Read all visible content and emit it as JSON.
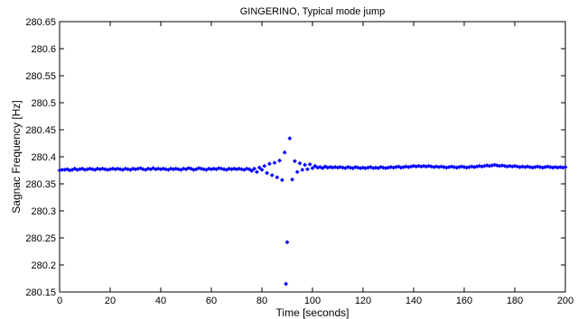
{
  "chart_data": {
    "type": "scatter",
    "title": "GINGERINO, Typical mode jump",
    "xlabel": "Time [seconds]",
    "ylabel": "Sagnac Frequency [Hz]",
    "xlim": [
      0,
      200
    ],
    "ylim": [
      280.15,
      280.65
    ],
    "x_ticks": [
      0,
      20,
      40,
      60,
      80,
      100,
      120,
      140,
      160,
      180,
      200
    ],
    "x_tick_labels": [
      "0",
      "20",
      "40",
      "60",
      "80",
      "100",
      "120",
      "140",
      "160",
      "180",
      "200"
    ],
    "y_ticks": [
      280.15,
      280.2,
      280.25,
      280.3,
      280.35,
      280.4,
      280.45,
      280.5,
      280.55,
      280.6,
      280.65
    ],
    "y_tick_labels": [
      "280.15",
      "280.2",
      "280.25",
      "280.3",
      "280.35",
      "280.4",
      "280.45",
      "280.5",
      "280.55",
      "280.6",
      "280.65"
    ],
    "grid": false,
    "legend": "none",
    "marker": "diamond",
    "series": [
      {
        "color": "#0000ff",
        "points": [
          [
            0,
            280.375
          ],
          [
            1,
            280.376
          ],
          [
            2,
            280.376
          ],
          [
            3,
            280.377
          ],
          [
            4,
            280.375
          ],
          [
            5,
            280.376
          ],
          [
            6,
            280.378
          ],
          [
            7,
            280.376
          ],
          [
            8,
            280.377
          ],
          [
            9,
            280.378
          ],
          [
            10,
            280.376
          ],
          [
            11,
            280.377
          ],
          [
            12,
            280.378
          ],
          [
            13,
            280.377
          ],
          [
            14,
            280.376
          ],
          [
            15,
            280.378
          ],
          [
            16,
            280.377
          ],
          [
            17,
            280.378
          ],
          [
            18,
            280.377
          ],
          [
            19,
            280.376
          ],
          [
            20,
            280.377
          ],
          [
            21,
            280.378
          ],
          [
            22,
            280.377
          ],
          [
            23,
            280.378
          ],
          [
            24,
            280.377
          ],
          [
            25,
            280.376
          ],
          [
            26,
            280.378
          ],
          [
            27,
            280.377
          ],
          [
            28,
            280.376
          ],
          [
            29,
            280.378
          ],
          [
            30,
            280.377
          ],
          [
            31,
            280.378
          ],
          [
            32,
            280.379
          ],
          [
            33,
            280.377
          ],
          [
            34,
            280.376
          ],
          [
            35,
            280.378
          ],
          [
            36,
            280.377
          ],
          [
            37,
            280.379
          ],
          [
            38,
            280.377
          ],
          [
            39,
            280.378
          ],
          [
            40,
            280.377
          ],
          [
            41,
            280.378
          ],
          [
            42,
            280.377
          ],
          [
            43,
            280.376
          ],
          [
            44,
            280.378
          ],
          [
            45,
            280.377
          ],
          [
            46,
            280.378
          ],
          [
            47,
            280.377
          ],
          [
            48,
            280.376
          ],
          [
            49,
            280.378
          ],
          [
            50,
            280.377
          ],
          [
            51,
            280.379
          ],
          [
            52,
            280.378
          ],
          [
            53,
            280.376
          ],
          [
            54,
            280.377
          ],
          [
            55,
            280.379
          ],
          [
            56,
            280.378
          ],
          [
            57,
            280.377
          ],
          [
            58,
            280.376
          ],
          [
            59,
            280.378
          ],
          [
            60,
            280.377
          ],
          [
            61,
            280.378
          ],
          [
            62,
            280.377
          ],
          [
            63,
            280.379
          ],
          [
            64,
            280.378
          ],
          [
            65,
            280.377
          ],
          [
            66,
            280.376
          ],
          [
            67,
            280.378
          ],
          [
            68,
            280.377
          ],
          [
            69,
            280.378
          ],
          [
            70,
            280.377
          ],
          [
            71,
            280.378
          ],
          [
            72,
            280.377
          ],
          [
            73,
            280.376
          ],
          [
            74,
            280.378
          ],
          [
            75,
            280.377
          ],
          [
            76,
            280.374
          ],
          [
            77,
            280.378
          ],
          [
            78,
            280.372
          ],
          [
            79,
            280.38
          ],
          [
            80,
            280.376
          ],
          [
            81,
            280.383
          ],
          [
            82,
            280.37
          ],
          [
            83,
            280.387
          ],
          [
            84,
            280.366
          ],
          [
            85,
            280.389
          ],
          [
            86,
            280.362
          ],
          [
            87,
            280.393
          ],
          [
            88,
            280.357
          ],
          [
            89,
            280.408
          ],
          [
            89.5,
            280.165
          ],
          [
            90,
            280.242
          ],
          [
            91,
            280.434
          ],
          [
            92,
            280.358
          ],
          [
            93,
            280.392
          ],
          [
            94,
            280.372
          ],
          [
            95,
            280.388
          ],
          [
            96,
            280.376
          ],
          [
            97,
            280.385
          ],
          [
            98,
            280.377
          ],
          [
            99,
            280.386
          ],
          [
            100,
            280.379
          ],
          [
            101,
            280.383
          ],
          [
            102,
            280.38
          ],
          [
            103,
            280.381
          ],
          [
            104,
            280.379
          ],
          [
            105,
            280.382
          ],
          [
            106,
            280.38
          ],
          [
            107,
            280.381
          ],
          [
            108,
            280.38
          ],
          [
            109,
            280.381
          ],
          [
            110,
            280.38
          ],
          [
            111,
            280.381
          ],
          [
            112,
            280.38
          ],
          [
            113,
            280.379
          ],
          [
            114,
            280.381
          ],
          [
            115,
            280.38
          ],
          [
            116,
            280.379
          ],
          [
            117,
            280.381
          ],
          [
            118,
            280.38
          ],
          [
            119,
            280.379
          ],
          [
            120,
            280.38
          ],
          [
            121,
            280.379
          ],
          [
            122,
            280.38
          ],
          [
            123,
            280.381
          ],
          [
            124,
            280.379
          ],
          [
            125,
            280.38
          ],
          [
            126,
            280.379
          ],
          [
            127,
            280.381
          ],
          [
            128,
            280.38
          ],
          [
            129,
            280.379
          ],
          [
            130,
            280.38
          ],
          [
            131,
            280.381
          ],
          [
            132,
            280.38
          ],
          [
            133,
            280.381
          ],
          [
            134,
            280.382
          ],
          [
            135,
            280.38
          ],
          [
            136,
            280.381
          ],
          [
            137,
            280.382
          ],
          [
            138,
            280.381
          ],
          [
            139,
            280.382
          ],
          [
            140,
            280.383
          ],
          [
            141,
            280.382
          ],
          [
            142,
            280.383
          ],
          [
            143,
            280.382
          ],
          [
            144,
            280.383
          ],
          [
            145,
            280.382
          ],
          [
            146,
            280.383
          ],
          [
            147,
            280.382
          ],
          [
            148,
            280.381
          ],
          [
            149,
            280.382
          ],
          [
            150,
            280.381
          ],
          [
            151,
            280.382
          ],
          [
            152,
            280.381
          ],
          [
            153,
            280.38
          ],
          [
            154,
            280.381
          ],
          [
            155,
            280.382
          ],
          [
            156,
            280.381
          ],
          [
            157,
            280.38
          ],
          [
            158,
            280.381
          ],
          [
            159,
            280.382
          ],
          [
            160,
            280.381
          ],
          [
            161,
            280.38
          ],
          [
            162,
            280.381
          ],
          [
            163,
            280.382
          ],
          [
            164,
            280.381
          ],
          [
            165,
            280.382
          ],
          [
            166,
            280.383
          ],
          [
            167,
            280.382
          ],
          [
            168,
            280.383
          ],
          [
            169,
            280.384
          ],
          [
            170,
            280.383
          ],
          [
            171,
            280.384
          ],
          [
            172,
            280.385
          ],
          [
            173,
            280.384
          ],
          [
            174,
            280.383
          ],
          [
            175,
            280.384
          ],
          [
            176,
            280.383
          ],
          [
            177,
            280.382
          ],
          [
            178,
            280.383
          ],
          [
            179,
            280.382
          ],
          [
            180,
            280.383
          ],
          [
            181,
            280.382
          ],
          [
            182,
            280.381
          ],
          [
            183,
            280.382
          ],
          [
            184,
            280.381
          ],
          [
            185,
            280.382
          ],
          [
            186,
            280.381
          ],
          [
            187,
            280.38
          ],
          [
            188,
            280.381
          ],
          [
            189,
            280.382
          ],
          [
            190,
            280.381
          ],
          [
            191,
            280.38
          ],
          [
            192,
            280.381
          ],
          [
            193,
            280.382
          ],
          [
            194,
            280.381
          ],
          [
            195,
            280.38
          ],
          [
            196,
            280.381
          ],
          [
            197,
            280.38
          ],
          [
            198,
            280.381
          ],
          [
            199,
            280.38
          ],
          [
            200,
            280.381
          ]
        ]
      }
    ]
  }
}
